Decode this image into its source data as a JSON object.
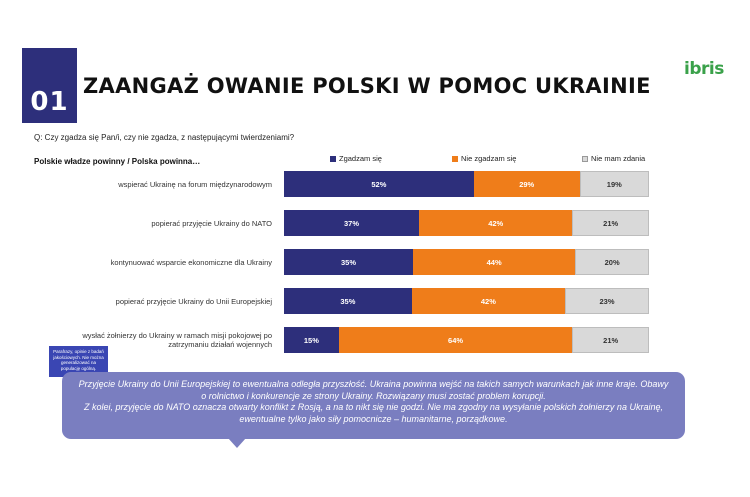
{
  "header": {
    "number": "01",
    "title": "ZAANGAŻ OWANIE POLSKI W POMOC UKRAINIE",
    "logo_main": "ibris"
  },
  "question": "Q: Czy zgadza się Pan/i, czy nie zgadza, z następującymi twierdzeniami?",
  "subhead": "Polskie władze powinny / Polska powinna…",
  "colors": {
    "agree": "#2d2f7b",
    "disagree": "#ef7d1a",
    "unsure": "#d9d9d9"
  },
  "chart_data": {
    "type": "bar",
    "orientation": "horizontal",
    "stacked": true,
    "percent_scale": true,
    "categories": [
      "wspierać Ukrainę na forum międzynarodowym",
      "popierać przyjęcie Ukrainy do NATO",
      "kontynuować wsparcie ekonomiczne dla Ukrainy",
      "popierać przyjęcie Ukrainy do Unii Europejskiej",
      "wysłać żołnierzy do Ukrainy w ramach misji pokojowej po zatrzymaniu działań wojennych"
    ],
    "series": [
      {
        "name": "Zgadzam się",
        "values": [
          52,
          37,
          35,
          35,
          15
        ],
        "color": "#2d2f7b"
      },
      {
        "name": "Nie zgadzam się",
        "values": [
          29,
          42,
          44,
          42,
          64
        ],
        "color": "#ef7d1a"
      },
      {
        "name": "Nie mam zdania",
        "values": [
          19,
          21,
          20,
          23,
          21
        ],
        "color": "#d9d9d9"
      }
    ],
    "legend_position": "top"
  },
  "note": "Parafrazy, opinie z badań jakościowych. Nie można generalizować na populację ogólną.",
  "callout": [
    "Przyjęcie Ukrainy do Unii Europejskiej to ewentualna odległa przyszłość. Ukraina powinna wejść na takich samych warunkach jak inne kraje. Obawy o rolnictwo i konkurencje ze strony Ukrainy. Rozwiązany musi zostać problem korupcji.",
    "Z kolei, przyjęcie do NATO oznacza otwarty konflikt z Rosją, a na to nikt się nie godzi. Nie ma zgodny na wysyłanie polskich żołnierzy na Ukrainę, ewentualne tylko jako siły pomocnicze – humanitarne, porządkowe."
  ]
}
